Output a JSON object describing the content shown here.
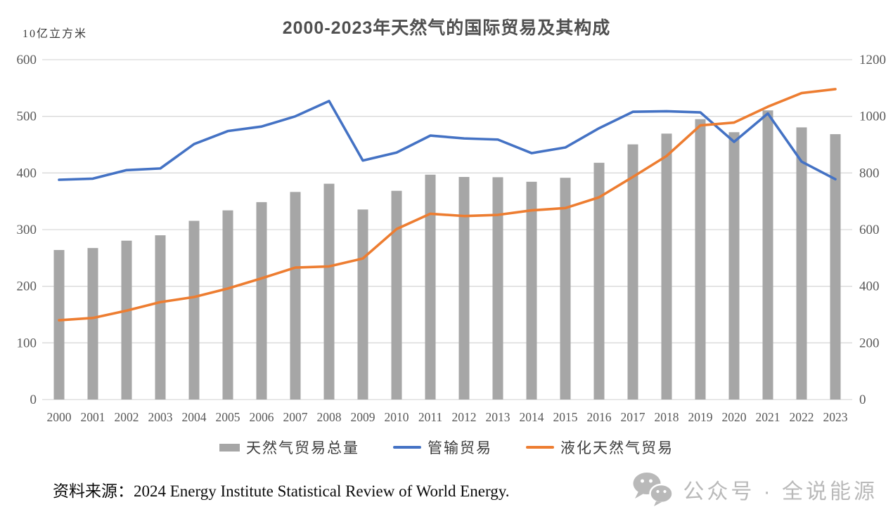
{
  "title": "2000-2023年天然气的国际贸易及其构成",
  "unit_label": "10亿立方米",
  "source_note": "资料来源：2024 Energy Institute Statistical Review of World Energy.",
  "watermark": {
    "icon": "wechat-icon",
    "text": "公众号 · 全说能源"
  },
  "colors": {
    "bar": "#A6A6A6",
    "pipeline_line": "#4472C4",
    "lng_line": "#ED7D31",
    "gridline": "#D9D9D9",
    "axis_text": "#595959",
    "title_text": "#4f4f4f",
    "watermark": "#b9b9b9"
  },
  "chart_data": {
    "type": "bar",
    "subtype": "bar+line combo, dual axis",
    "title": "2000-2023年天然气的国际贸易及其构成",
    "categories": [
      "2000",
      "2001",
      "2002",
      "2003",
      "2004",
      "2005",
      "2006",
      "2007",
      "2008",
      "2009",
      "2010",
      "2011",
      "2012",
      "2013",
      "2014",
      "2015",
      "2016",
      "2017",
      "2018",
      "2019",
      "2020",
      "2021",
      "2022",
      "2023"
    ],
    "series": [
      {
        "name": "天然气贸易总量",
        "type": "bar",
        "axis": "right",
        "color": "#A6A6A6",
        "values": [
          528,
          535,
          561,
          580,
          631,
          668,
          697,
          733,
          762,
          671,
          737,
          794,
          786,
          785,
          769,
          783,
          836,
          901,
          939,
          990,
          944,
          1021,
          961,
          937
        ]
      },
      {
        "name": "管输贸易",
        "type": "line",
        "axis": "left",
        "color": "#4472C4",
        "values": [
          388,
          390,
          405,
          408,
          451,
          474,
          482,
          500,
          527,
          422,
          436,
          466,
          461,
          459,
          435,
          445,
          479,
          508,
          509,
          507,
          455,
          505,
          420,
          389
        ]
      },
      {
        "name": "液化天然气贸易",
        "type": "line",
        "axis": "left",
        "color": "#ED7D31",
        "values": [
          140,
          144,
          157,
          172,
          181,
          196,
          214,
          233,
          235,
          249,
          301,
          328,
          324,
          326,
          334,
          338,
          357,
          393,
          430,
          484,
          489,
          517,
          541,
          548
        ]
      }
    ],
    "left_axis": {
      "label": "10亿立方米",
      "min": 0,
      "max": 600,
      "step": 100,
      "ticks": [
        0,
        100,
        200,
        300,
        400,
        500,
        600
      ]
    },
    "right_axis": {
      "min": 0,
      "max": 1200,
      "step": 200,
      "ticks": [
        0,
        200,
        400,
        600,
        800,
        1000,
        1200
      ]
    },
    "grid": "horizontal gridlines only",
    "legend_position": "bottom"
  }
}
